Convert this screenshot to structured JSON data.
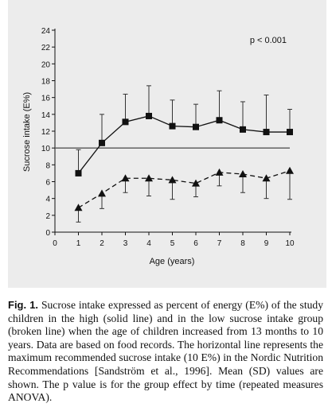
{
  "chart_data": {
    "type": "line",
    "x": [
      1,
      2,
      3,
      4,
      5,
      6,
      7,
      8,
      9,
      10
    ],
    "x_ticks": [
      "0",
      "1",
      "2",
      "3",
      "4",
      "5",
      "6",
      "7",
      "8",
      "9",
      "10"
    ],
    "y_ticks": [
      "0",
      "2",
      "4",
      "6",
      "8",
      "10",
      "12",
      "14",
      "16",
      "18",
      "20",
      "22",
      "24"
    ],
    "xlim": [
      0,
      10
    ],
    "ylim": [
      0,
      24
    ],
    "xlabel": "Age (years)",
    "ylabel": "Sucrose intake (E%)",
    "annotation": "p < 0.001",
    "reference_line": 10,
    "grid": false,
    "series": [
      {
        "style": "solid",
        "marker": "square",
        "values": [
          7.0,
          10.6,
          13.1,
          13.8,
          12.6,
          12.5,
          13.3,
          12.2,
          11.9,
          11.9
        ],
        "error_upper": [
          9.8,
          14.0,
          16.4,
          17.4,
          15.7,
          15.2,
          16.8,
          15.5,
          16.3,
          14.6
        ],
        "error_dir": "up"
      },
      {
        "style": "dashed",
        "marker": "triangle",
        "values": [
          2.9,
          4.6,
          6.4,
          6.4,
          6.2,
          5.8,
          7.1,
          6.9,
          6.4,
          7.3
        ],
        "error_lower": [
          1.2,
          2.8,
          4.7,
          4.3,
          3.9,
          4.2,
          5.5,
          4.7,
          4.0,
          3.9
        ],
        "error_dir": "down"
      }
    ]
  },
  "caption": {
    "label": "Fig. 1.",
    "text": "Sucrose intake expressed as percent of energy (E%) of the study children in the high (solid line) and in the low sucrose intake group (broken line) when the age of children increased from 13 months to 10 years. Data are based on food records. The horizontal line represents the maximum recommended sucrose intake (10 E%) in the Nordic Nutrition Recommendations [Sandström et al., 1996]. Mean (SD) values are shown. The p value is for the group effect by time (repeated measures ANOVA)."
  }
}
